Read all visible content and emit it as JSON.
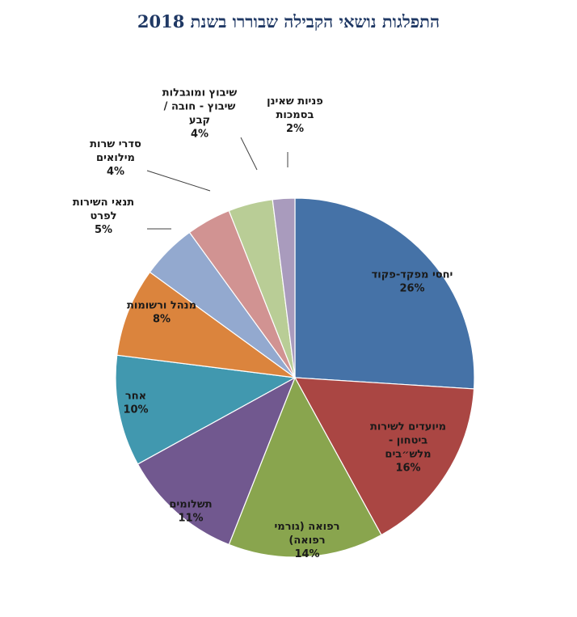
{
  "title": "התפלגות נושאי הקבילה שבוררו בשנת 2018",
  "chart_data": {
    "type": "pie",
    "title": "התפלגות נושאי הקבילה שבוררו בשנת 2018",
    "legend": "none",
    "slices": [
      {
        "label": [
          "יחסי מפקד-פקוד"
        ],
        "pct_label": "26%",
        "value": 26,
        "color": "#4572a7"
      },
      {
        "label": [
          "מיועדים לשירות",
          "ביטחון -",
          "מלש״בים"
        ],
        "pct_label": "16%",
        "value": 16,
        "color": "#aa4643"
      },
      {
        "label": [
          "רפואה (גורמי",
          "רפואה)"
        ],
        "pct_label": "14%",
        "value": 14,
        "color": "#89a54e"
      },
      {
        "label": [
          "תשלומים"
        ],
        "pct_label": "11%",
        "value": 11,
        "color": "#71588f"
      },
      {
        "label": [
          "אחר"
        ],
        "pct_label": "10%",
        "value": 10,
        "color": "#4198af"
      },
      {
        "label": [
          "מנהל ורשומות"
        ],
        "pct_label": "8%",
        "value": 8,
        "color": "#db843d"
      },
      {
        "label": [
          "תנאי השירות",
          "לפרט"
        ],
        "pct_label": "5%",
        "value": 5,
        "color": "#93a9cf"
      },
      {
        "label": [
          "סדרי שרות",
          "מילואים"
        ],
        "pct_label": "4%",
        "value": 4,
        "color": "#d19392"
      },
      {
        "label": [
          "שיבוץ ומוגבלות",
          "שיבוץ - חובה /",
          "קבע"
        ],
        "pct_label": "4%",
        "value": 4,
        "color": "#b9cd96"
      },
      {
        "label": [
          "פניות שאינן",
          "בסמכות"
        ],
        "pct_label": "2%",
        "value": 2,
        "color": "#a99bbd"
      }
    ]
  }
}
